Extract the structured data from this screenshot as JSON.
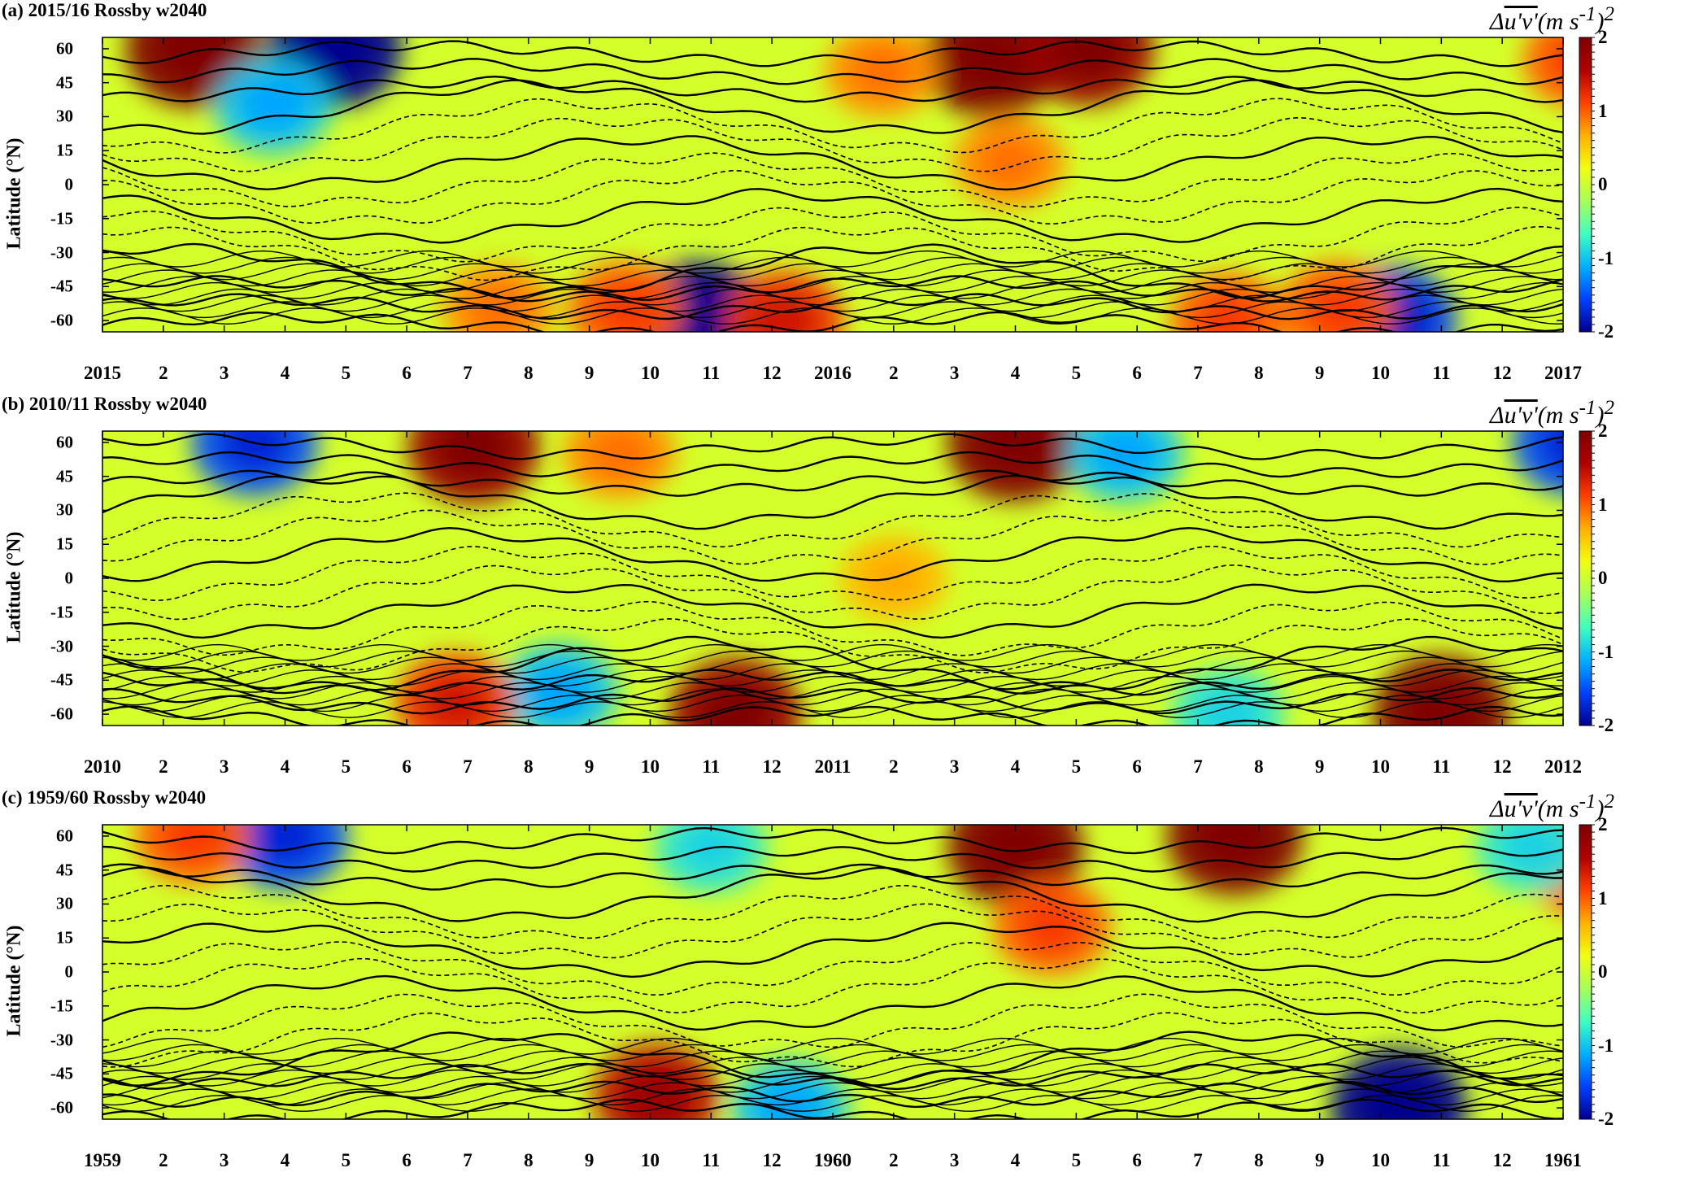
{
  "figure": {
    "colorbar": {
      "label_prefix": "Δ",
      "label_over": "u'v'",
      "label_units": "(m s",
      "label_sup": "-1",
      "label_close": ")",
      "label_power": "2",
      "ticks": [
        "2",
        "1",
        "0",
        "-1",
        "-2"
      ],
      "colors": [
        "#00008f",
        "#0040ff",
        "#00b0ff",
        "#40ffbf",
        "#a6ff59",
        "#f2ff0d",
        "#ffb000",
        "#ff4000",
        "#b00000",
        "#800000"
      ]
    },
    "panels": [
      {
        "title": "(a) 2015/16 Rossby w2040",
        "ylabel": "Latitude (°N)",
        "xticks": [
          "2015",
          "2",
          "3",
          "4",
          "5",
          "6",
          "7",
          "8",
          "9",
          "10",
          "11",
          "12",
          "2016",
          "2",
          "3",
          "4",
          "5",
          "6",
          "7",
          "8",
          "9",
          "10",
          "11",
          "12",
          "2017"
        ]
      },
      {
        "title": "(b) 2010/11 Rossby w2040",
        "ylabel": "Latitude (°N)",
        "xticks": [
          "2010",
          "2",
          "3",
          "4",
          "5",
          "6",
          "7",
          "8",
          "9",
          "10",
          "11",
          "12",
          "2011",
          "2",
          "3",
          "4",
          "5",
          "6",
          "7",
          "8",
          "9",
          "10",
          "11",
          "12",
          "2012"
        ]
      },
      {
        "title": "(c) 1959/60 Rossby w2040",
        "ylabel": "Latitude (°N)",
        "xticks": [
          "1959",
          "2",
          "3",
          "4",
          "5",
          "6",
          "7",
          "8",
          "9",
          "10",
          "11",
          "12",
          "1960",
          "2",
          "3",
          "4",
          "5",
          "6",
          "7",
          "8",
          "9",
          "10",
          "11",
          "12",
          "1961"
        ]
      }
    ],
    "yticks": [
      "60",
      "45",
      "30",
      "15",
      "0",
      "-15",
      "-30",
      "-45",
      "-60"
    ]
  },
  "chart_data": [
    {
      "type": "heatmap",
      "title": "(a) 2015/16 Rossby w2040",
      "ylabel": "Latitude (°N)",
      "x_range": [
        "2015-01",
        "2017-01"
      ],
      "ylim": [
        -65,
        65
      ],
      "colorbar_range": [
        -2,
        2
      ],
      "colorbar_label": "Δu'v' (m s-1)^2",
      "overlay": "black contours, solid positive / dashed negative",
      "anomalies": [
        {
          "month": 1.5,
          "lat": 60,
          "value": 2.0
        },
        {
          "month": 3.8,
          "lat": 60,
          "value": -2.0
        },
        {
          "month": 9.8,
          "lat": -60,
          "value": -2.0
        },
        {
          "month": 14.6,
          "lat": 55,
          "value": 2.0
        },
        {
          "month": 16.2,
          "lat": 60,
          "value": 1.8
        },
        {
          "month": 14.9,
          "lat": 10,
          "value": 0.8
        },
        {
          "month": 11.2,
          "lat": -60,
          "value": 1.2
        },
        {
          "month": 8.6,
          "lat": -55,
          "value": 1.0
        },
        {
          "month": 21.2,
          "lat": -60,
          "value": -1.6
        },
        {
          "month": 20.3,
          "lat": -55,
          "value": 1.0
        },
        {
          "month": 18.5,
          "lat": -60,
          "value": 1.0
        },
        {
          "month": 24.3,
          "lat": 55,
          "value": 1.0
        },
        {
          "month": 2.8,
          "lat": 35,
          "value": -1.0
        },
        {
          "month": 12.8,
          "lat": 50,
          "value": 0.8
        },
        {
          "month": 6.5,
          "lat": -55,
          "value": 0.8
        }
      ]
    },
    {
      "type": "heatmap",
      "title": "(b) 2010/11 Rossby w2040",
      "ylabel": "Latitude (°N)",
      "x_range": [
        "2010-01",
        "2012-01"
      ],
      "ylim": [
        -65,
        65
      ],
      "colorbar_range": [
        -2,
        2
      ],
      "colorbar_label": "Δu'v' (m s-1)^2",
      "overlay": "black contours, solid positive / dashed negative",
      "anomalies": [
        {
          "month": 15.0,
          "lat": 60,
          "value": 2.0
        },
        {
          "month": 6.1,
          "lat": 58,
          "value": 1.8
        },
        {
          "month": 2.5,
          "lat": 60,
          "value": -1.5
        },
        {
          "month": 10.4,
          "lat": -60,
          "value": 1.8
        },
        {
          "month": 22.0,
          "lat": -60,
          "value": 2.0
        },
        {
          "month": 7.5,
          "lat": -50,
          "value": -1.0
        },
        {
          "month": 5.8,
          "lat": -55,
          "value": 1.2
        },
        {
          "month": 16.8,
          "lat": 55,
          "value": -1.0
        },
        {
          "month": 24.2,
          "lat": 60,
          "value": -1.5
        },
        {
          "month": 8.5,
          "lat": 55,
          "value": 0.8
        },
        {
          "month": 13.0,
          "lat": 0,
          "value": 0.6
        },
        {
          "month": 18.5,
          "lat": -60,
          "value": -0.8
        }
      ]
    },
    {
      "type": "heatmap",
      "title": "(c) 1959/60 Rossby w2040",
      "ylabel": "Latitude (°N)",
      "x_range": [
        "1959-01",
        "1961-01"
      ],
      "ylim": [
        -65,
        65
      ],
      "colorbar_range": [
        -2,
        2
      ],
      "colorbar_label": "Δu'v' (m s-1)^2",
      "overlay": "black contours, solid positive / dashed negative",
      "anomalies": [
        {
          "month": 15.0,
          "lat": 55,
          "value": 2.0
        },
        {
          "month": 18.6,
          "lat": 60,
          "value": 2.0
        },
        {
          "month": 15.6,
          "lat": 20,
          "value": 1.0
        },
        {
          "month": 3.0,
          "lat": 60,
          "value": -1.5
        },
        {
          "month": 9.1,
          "lat": -55,
          "value": 1.5
        },
        {
          "month": 11.3,
          "lat": -60,
          "value": -1.0
        },
        {
          "month": 21.3,
          "lat": -60,
          "value": -2.0
        },
        {
          "month": 1.5,
          "lat": 60,
          "value": 1.0
        },
        {
          "month": 24.4,
          "lat": 45,
          "value": 1.0
        },
        {
          "month": 10.0,
          "lat": 55,
          "value": -0.8
        },
        {
          "month": 23.5,
          "lat": 55,
          "value": -0.8
        }
      ]
    }
  ]
}
